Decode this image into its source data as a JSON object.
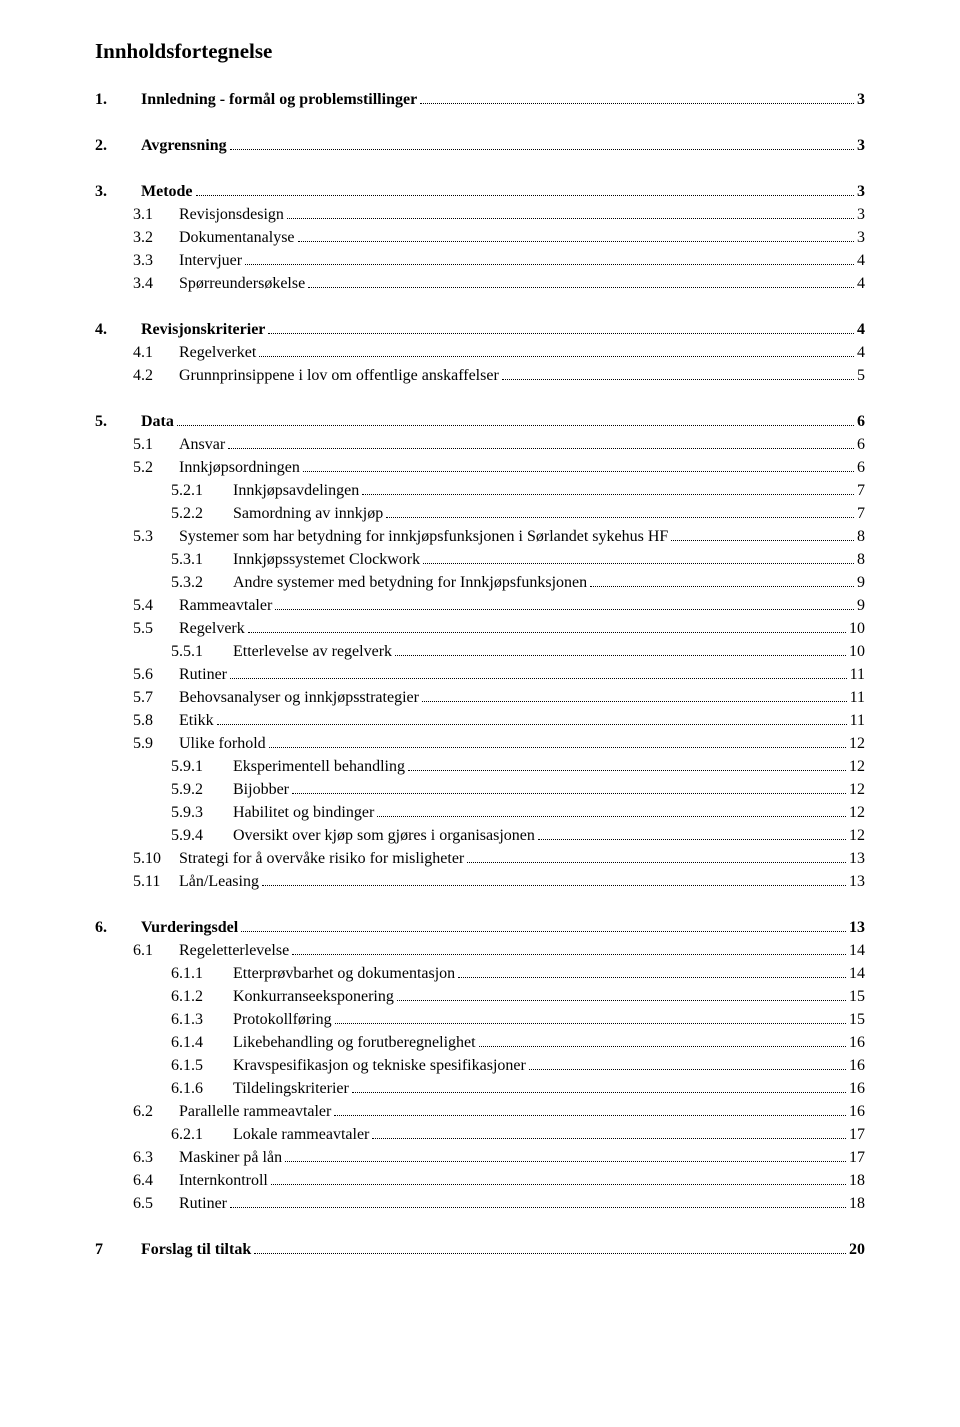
{
  "title": "Innholdsfortegnelse",
  "toc": [
    {
      "n": "1.",
      "t": "Innledning - formål og problemstillinger",
      "p": "3",
      "lvl": 0,
      "bold": true,
      "grp": 1
    },
    {
      "n": "2.",
      "t": "Avgrensning",
      "p": "3",
      "lvl": 0,
      "bold": true,
      "grp": 2
    },
    {
      "n": "3.",
      "t": "Metode",
      "p": "3",
      "lvl": 0,
      "bold": true,
      "grp": 3
    },
    {
      "n": "3.1",
      "t": "Revisjonsdesign",
      "p": "3",
      "lvl": 1,
      "grp": 3
    },
    {
      "n": "3.2",
      "t": "Dokumentanalyse",
      "p": "3",
      "lvl": 1,
      "grp": 3
    },
    {
      "n": "3.3",
      "t": "Intervjuer",
      "p": "4",
      "lvl": 1,
      "grp": 3
    },
    {
      "n": "3.4",
      "t": "Spørreundersøkelse",
      "p": "4",
      "lvl": 1,
      "grp": 3
    },
    {
      "n": "4.",
      "t": "Revisjonskriterier",
      "p": "4",
      "lvl": 0,
      "bold": true,
      "grp": 4
    },
    {
      "n": "4.1",
      "t": "Regelverket",
      "p": "4",
      "lvl": 1,
      "grp": 4
    },
    {
      "n": "4.2",
      "t": "Grunnprinsippene i lov om offentlige anskaffelser",
      "p": "5",
      "lvl": 1,
      "grp": 4
    },
    {
      "n": "5.",
      "t": "Data",
      "p": "6",
      "lvl": 0,
      "bold": true,
      "grp": 5
    },
    {
      "n": "5.1",
      "t": "Ansvar",
      "p": "6",
      "lvl": 1,
      "grp": 5
    },
    {
      "n": "5.2",
      "t": "Innkjøpsordningen",
      "p": "6",
      "lvl": 1,
      "grp": 5
    },
    {
      "n": "5.2.1",
      "t": "Innkjøpsavdelingen",
      "p": "7",
      "lvl": 2,
      "grp": 5
    },
    {
      "n": "5.2.2",
      "t": "Samordning av innkjøp",
      "p": "7",
      "lvl": 2,
      "grp": 5
    },
    {
      "n": "5.3",
      "t": "Systemer som har betydning for innkjøpsfunksjonen i Sørlandet sykehus HF",
      "p": "8",
      "lvl": 1,
      "grp": 5
    },
    {
      "n": "5.3.1",
      "t": "Innkjøpssystemet Clockwork",
      "p": "8",
      "lvl": 2,
      "grp": 5
    },
    {
      "n": "5.3.2",
      "t": "Andre systemer med betydning for Innkjøpsfunksjonen",
      "p": "9",
      "lvl": 2,
      "grp": 5
    },
    {
      "n": "5.4",
      "t": "Rammeavtaler",
      "p": "9",
      "lvl": 1,
      "grp": 5
    },
    {
      "n": "5.5",
      "t": "Regelverk",
      "p": "10",
      "lvl": 1,
      "grp": 5
    },
    {
      "n": "5.5.1",
      "t": "Etterlevelse av regelverk",
      "p": "10",
      "lvl": 2,
      "grp": 5
    },
    {
      "n": "5.6",
      "t": "Rutiner",
      "p": "11",
      "lvl": 1,
      "grp": 5
    },
    {
      "n": "5.7",
      "t": "Behovsanalyser og innkjøpsstrategier",
      "p": "11",
      "lvl": 1,
      "grp": 5
    },
    {
      "n": "5.8",
      "t": "Etikk",
      "p": "11",
      "lvl": 1,
      "grp": 5
    },
    {
      "n": "5.9",
      "t": "Ulike forhold",
      "p": "12",
      "lvl": 1,
      "grp": 5
    },
    {
      "n": "5.9.1",
      "t": "Eksperimentell behandling",
      "p": "12",
      "lvl": 2,
      "grp": 5
    },
    {
      "n": "5.9.2",
      "t": "Bijobber",
      "p": "12",
      "lvl": 2,
      "grp": 5
    },
    {
      "n": "5.9.3",
      "t": "Habilitet og bindinger",
      "p": "12",
      "lvl": 2,
      "grp": 5
    },
    {
      "n": "5.9.4",
      "t": "Oversikt over kjøp som gjøres i organisasjonen",
      "p": "12",
      "lvl": 2,
      "grp": 5
    },
    {
      "n": "5.10",
      "t": "Strategi for å overvåke risiko for misligheter",
      "p": "13",
      "lvl": 1,
      "grp": 5
    },
    {
      "n": "5.11",
      "t": "Lån/Leasing",
      "p": "13",
      "lvl": 1,
      "grp": 5
    },
    {
      "n": "6.",
      "t": "Vurderingsdel",
      "p": "13",
      "lvl": 0,
      "bold": true,
      "grp": 6
    },
    {
      "n": "6.1",
      "t": "Regeletterlevelse",
      "p": "14",
      "lvl": 1,
      "grp": 6
    },
    {
      "n": "6.1.1",
      "t": "Etterprøvbarhet og dokumentasjon",
      "p": "14",
      "lvl": 2,
      "grp": 6
    },
    {
      "n": "6.1.2",
      "t": "Konkurranseeksponering",
      "p": "15",
      "lvl": 2,
      "grp": 6
    },
    {
      "n": "6.1.3",
      "t": "Protokollføring",
      "p": "15",
      "lvl": 2,
      "grp": 6
    },
    {
      "n": "6.1.4",
      "t": "Likebehandling og forutberegnelighet",
      "p": "16",
      "lvl": 2,
      "grp": 6
    },
    {
      "n": "6.1.5",
      "t": "Kravspesifikasjon og tekniske spesifikasjoner",
      "p": "16",
      "lvl": 2,
      "grp": 6
    },
    {
      "n": "6.1.6",
      "t": "Tildelingskriterier",
      "p": "16",
      "lvl": 2,
      "grp": 6
    },
    {
      "n": "6.2",
      "t": "Parallelle rammeavtaler",
      "p": "16",
      "lvl": 1,
      "grp": 6
    },
    {
      "n": "6.2.1",
      "t": "Lokale rammeavtaler",
      "p": "17",
      "lvl": 2,
      "grp": 6
    },
    {
      "n": "6.3",
      "t": "Maskiner på lån",
      "p": "17",
      "lvl": 1,
      "grp": 6
    },
    {
      "n": "6.4",
      "t": "Internkontroll",
      "p": "18",
      "lvl": 1,
      "grp": 6
    },
    {
      "n": "6.5",
      "t": "Rutiner",
      "p": "18",
      "lvl": 1,
      "grp": 6
    },
    {
      "n": "7",
      "t": "Forslag til tiltak",
      "p": "20",
      "lvl": 0,
      "bold": true,
      "grp": 7
    }
  ]
}
